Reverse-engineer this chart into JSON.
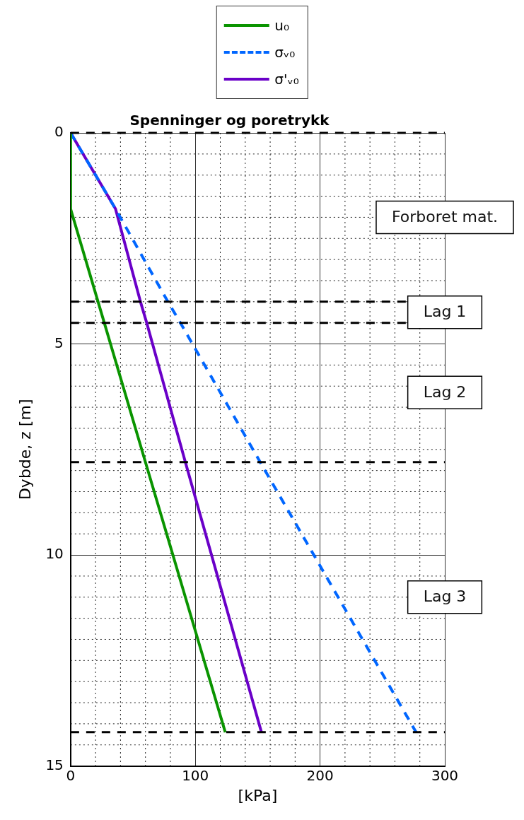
{
  "chart_data": {
    "type": "line",
    "title": "Spenninger og poretrykk",
    "xlabel": "[kPa]",
    "ylabel": "Dybde, z [m]",
    "xlim": [
      0,
      300
    ],
    "xticks": [
      0,
      100,
      200,
      300
    ],
    "ylim": [
      15,
      0
    ],
    "yticks": [
      0,
      5,
      10,
      15
    ],
    "grid": true,
    "legend": "top",
    "marker": "none",
    "series": [
      {
        "name": "u₀",
        "color": "#0a9400",
        "line_style": "solid",
        "x": [
          0,
          0,
          22,
          27,
          60,
          124
        ],
        "values": [
          0,
          1.8,
          4.0,
          4.5,
          7.8,
          14.2
        ]
      },
      {
        "name": "σᵥ₀",
        "color": "#0066ff",
        "line_style": "dashed",
        "x": [
          0,
          36,
          78,
          88,
          152,
          277
        ],
        "values": [
          0,
          1.8,
          4.0,
          4.5,
          7.8,
          14.2
        ]
      },
      {
        "name": "σ'ᵥ₀",
        "color": "#6a00c8",
        "line_style": "solid",
        "x": [
          0,
          36,
          56,
          61,
          92,
          153
        ],
        "values": [
          0,
          1.8,
          4.0,
          4.5,
          7.8,
          14.2
        ]
      }
    ],
    "ref_lines": [
      {
        "axis": "y",
        "value": 0,
        "color": "#000000",
        "line_style": "dashed"
      },
      {
        "axis": "y",
        "value": 4.0,
        "color": "#000000",
        "line_style": "dashed"
      },
      {
        "axis": "y",
        "value": 4.5,
        "color": "#000000",
        "line_style": "dashed"
      },
      {
        "axis": "y",
        "value": 7.8,
        "color": "#000000",
        "line_style": "dashed"
      },
      {
        "axis": "y",
        "value": 14.2,
        "color": "#000000",
        "line_style": "dashed"
      }
    ],
    "annotations": [
      "Forboret mat.",
      "Lag 1",
      "Lag 2",
      "Lag 3"
    ]
  }
}
